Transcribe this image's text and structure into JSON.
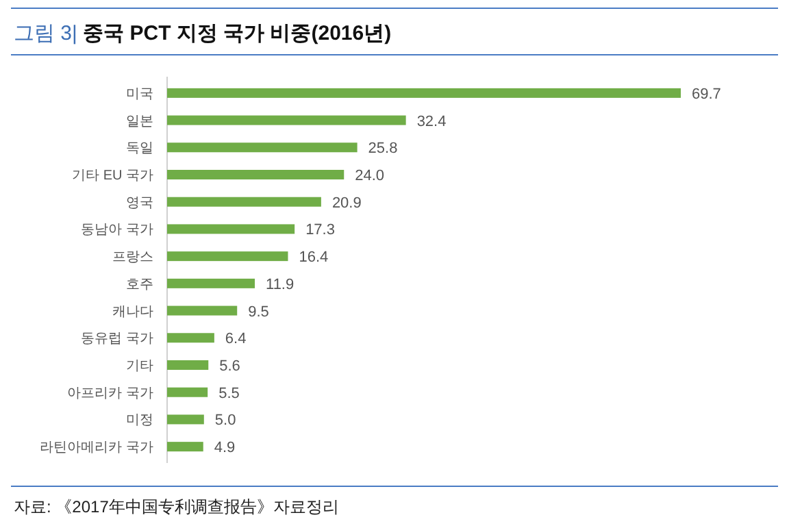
{
  "chart_data": {
    "type": "bar",
    "orientation": "horizontal",
    "title": "그림 3| 중국 PCT 지정 국가 비중(2016년)",
    "categories": [
      "미국",
      "일본",
      "독일",
      "기타 EU 국가",
      "영국",
      "동남아 국가",
      "프랑스",
      "호주",
      "캐나다",
      "동유럽 국가",
      "기타",
      "아프리카 국가",
      "미정",
      "라틴아메리카 국가"
    ],
    "values": [
      69.7,
      32.4,
      25.8,
      24.0,
      20.9,
      17.3,
      16.4,
      11.9,
      9.5,
      6.4,
      5.6,
      5.5,
      5.0,
      4.9
    ],
    "value_labels": [
      "69.7",
      "32.4",
      "25.8",
      "24.0",
      "20.9",
      "17.3",
      "16.4",
      "11.9",
      "9.5",
      "6.4",
      "5.6",
      "5.5",
      "5.0",
      "4.9"
    ],
    "color": "#70ad47",
    "annotations": [
      "자료: 《2017年中国专利调查报告》자료정리"
    ]
  }
}
